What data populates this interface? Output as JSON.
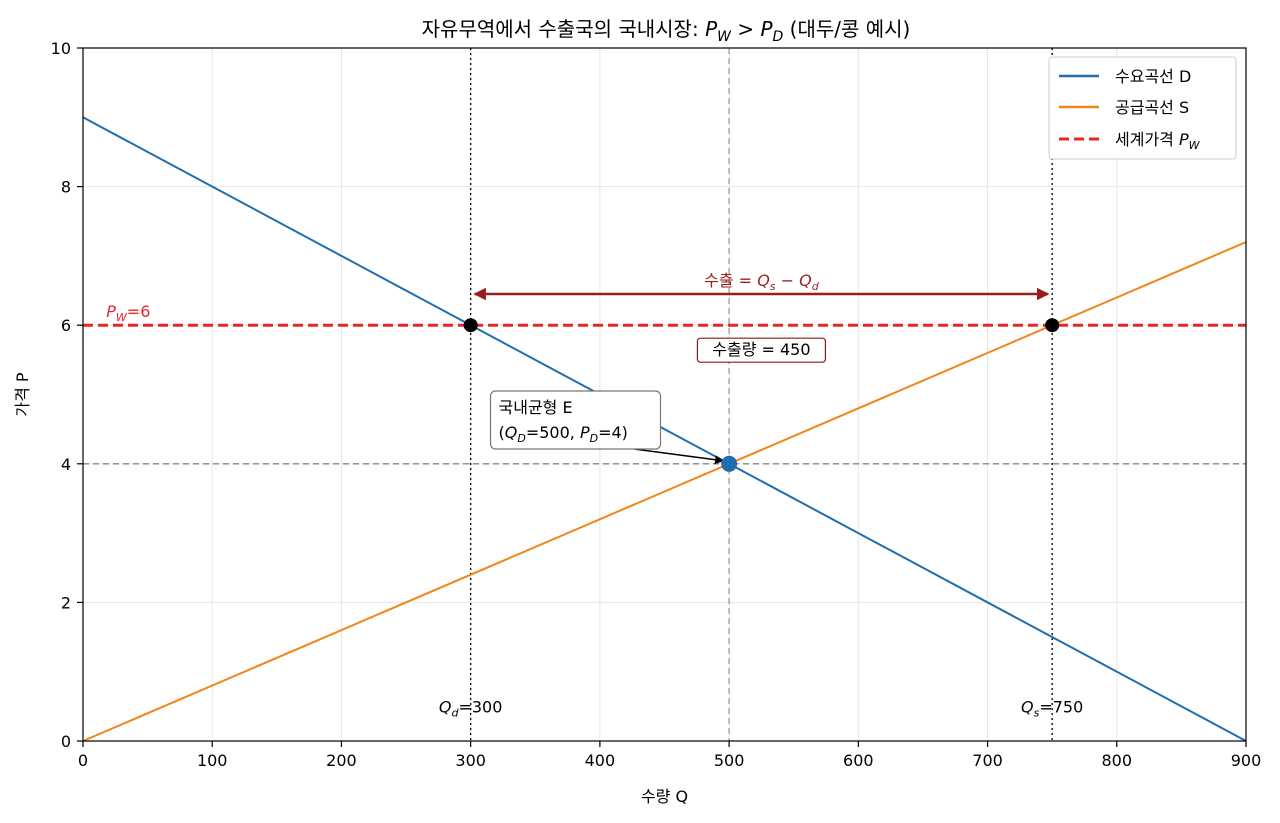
{
  "chart_data": {
    "type": "line",
    "title": "자유무역에서 수출국의 국내시장: P_W > P_D (대두/콩 예시)",
    "title_parts": {
      "prefix": "자유무역에서 수출국의 국내시장: ",
      "pw": "P",
      "pw_sub": "W",
      "gt": " > ",
      "pd": "P",
      "pd_sub": "D",
      "suffix": " (대두/콩 예시)"
    },
    "xlabel": "수량 Q",
    "ylabel": "가격 P",
    "xlim": [
      0,
      900
    ],
    "ylim": [
      0,
      10
    ],
    "xticks": [
      0,
      100,
      200,
      300,
      400,
      500,
      600,
      700,
      800,
      900
    ],
    "yticks": [
      0,
      2,
      4,
      6,
      8,
      10
    ],
    "grid": true,
    "legend_position": "top-right",
    "series": [
      {
        "name": "수요곡선 D",
        "label": "수요곡선 D",
        "color": "#1f6eb0",
        "x": [
          0,
          900
        ],
        "y": [
          9,
          0
        ]
      },
      {
        "name": "공급곡선 S",
        "label": "공급곡선 S",
        "color": "#f0851b",
        "x": [
          0,
          900
        ],
        "y": [
          0,
          7.2
        ]
      }
    ],
    "world_price": {
      "label": "세계가격 ",
      "sym": "P",
      "sub": "W",
      "value": 6,
      "color": "#e8262a"
    },
    "pw_annotation": {
      "sym": "P",
      "sub": "W",
      "text": "=6"
    },
    "equilibrium": {
      "q": 500,
      "p": 4,
      "line1": "국내균형 E",
      "line2_parts": [
        "(",
        "Q",
        "D",
        "=500, ",
        "P",
        "D",
        "=4)"
      ]
    },
    "points": [
      {
        "name": "demand-at-world-price",
        "q": 300,
        "p": 6
      },
      {
        "name": "supply-at-world-price",
        "q": 750,
        "p": 6
      }
    ],
    "qd_label": {
      "sym": "Q",
      "sub": "d",
      "text": "=300",
      "q": 300
    },
    "qs_label": {
      "sym": "Q",
      "sub": "s",
      "text": "=750",
      "q": 750
    },
    "export_arrow": {
      "q_from": 300,
      "q_to": 750,
      "p": 6.45,
      "label_prefix": "수출 = ",
      "qs": "Q",
      "qs_sub": "s",
      "minus": " − ",
      "qd": "Q",
      "qd_sub": "d",
      "color": "#9b1c1c"
    },
    "export_box": {
      "text": "수출량 = 450",
      "value": 450
    }
  }
}
